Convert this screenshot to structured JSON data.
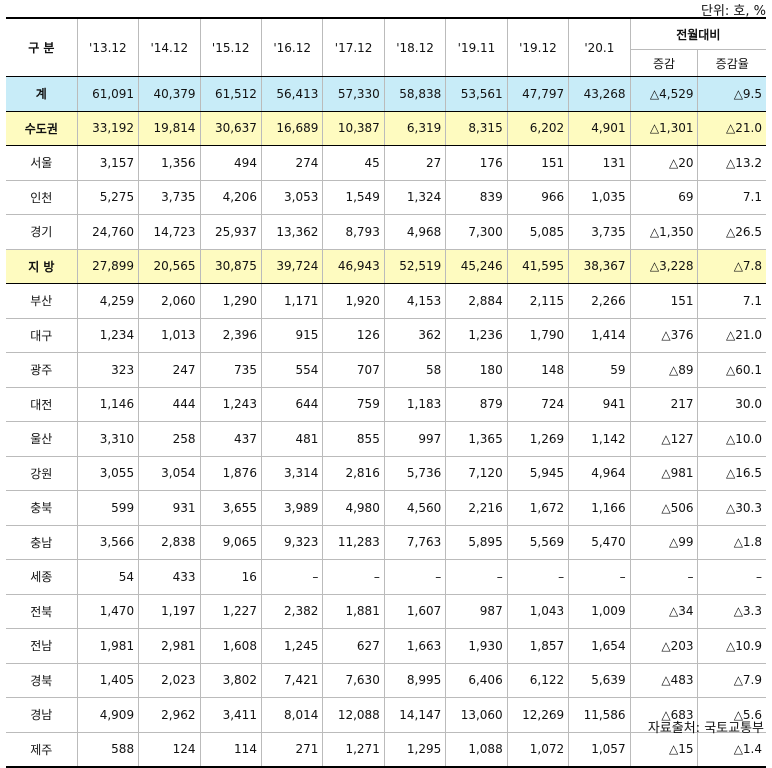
{
  "unit_label": "단위: 호, %",
  "source_label": "자료출처: 국토교통부",
  "header": {
    "category": "구 분",
    "years": [
      "'13.12",
      "'14.12",
      "'15.12",
      "'16.12",
      "'17.12",
      "'18.12",
      "'19.11",
      "'19.12",
      "'20.1"
    ],
    "mom_group": "전월대비",
    "mom_change": "증감",
    "mom_rate": "증감율"
  },
  "rows": [
    {
      "name": "계",
      "type": "total",
      "values": [
        "61,091",
        "40,379",
        "61,512",
        "56,413",
        "57,330",
        "58,838",
        "53,561",
        "47,797",
        "43,268",
        "△4,529",
        "△9.5"
      ]
    },
    {
      "name": "수도권",
      "type": "sub",
      "values": [
        "33,192",
        "19,814",
        "30,637",
        "16,689",
        "10,387",
        "6,319",
        "8,315",
        "6,202",
        "4,901",
        "△1,301",
        "△21.0"
      ]
    },
    {
      "name": "서울",
      "type": "row",
      "values": [
        "3,157",
        "1,356",
        "494",
        "274",
        "45",
        "27",
        "176",
        "151",
        "131",
        "△20",
        "△13.2"
      ]
    },
    {
      "name": "인천",
      "type": "row",
      "values": [
        "5,275",
        "3,735",
        "4,206",
        "3,053",
        "1,549",
        "1,324",
        "839",
        "966",
        "1,035",
        "69",
        "7.1"
      ]
    },
    {
      "name": "경기",
      "type": "row",
      "values": [
        "24,760",
        "14,723",
        "25,937",
        "13,362",
        "8,793",
        "4,968",
        "7,300",
        "5,085",
        "3,735",
        "△1,350",
        "△26.5"
      ]
    },
    {
      "name": "지 방",
      "type": "sub",
      "values": [
        "27,899",
        "20,565",
        "30,875",
        "39,724",
        "46,943",
        "52,519",
        "45,246",
        "41,595",
        "38,367",
        "△3,228",
        "△7.8"
      ]
    },
    {
      "name": "부산",
      "type": "row",
      "values": [
        "4,259",
        "2,060",
        "1,290",
        "1,171",
        "1,920",
        "4,153",
        "2,884",
        "2,115",
        "2,266",
        "151",
        "7.1"
      ]
    },
    {
      "name": "대구",
      "type": "row",
      "values": [
        "1,234",
        "1,013",
        "2,396",
        "915",
        "126",
        "362",
        "1,236",
        "1,790",
        "1,414",
        "△376",
        "△21.0"
      ]
    },
    {
      "name": "광주",
      "type": "row",
      "values": [
        "323",
        "247",
        "735",
        "554",
        "707",
        "58",
        "180",
        "148",
        "59",
        "△89",
        "△60.1"
      ]
    },
    {
      "name": "대전",
      "type": "row",
      "values": [
        "1,146",
        "444",
        "1,243",
        "644",
        "759",
        "1,183",
        "879",
        "724",
        "941",
        "217",
        "30.0"
      ]
    },
    {
      "name": "울산",
      "type": "row",
      "values": [
        "3,310",
        "258",
        "437",
        "481",
        "855",
        "997",
        "1,365",
        "1,269",
        "1,142",
        "△127",
        "△10.0"
      ]
    },
    {
      "name": "강원",
      "type": "row",
      "values": [
        "3,055",
        "3,054",
        "1,876",
        "3,314",
        "2,816",
        "5,736",
        "7,120",
        "5,945",
        "4,964",
        "△981",
        "△16.5"
      ]
    },
    {
      "name": "충북",
      "type": "row",
      "values": [
        "599",
        "931",
        "3,655",
        "3,989",
        "4,980",
        "4,560",
        "2,216",
        "1,672",
        "1,166",
        "△506",
        "△30.3"
      ]
    },
    {
      "name": "충남",
      "type": "row",
      "values": [
        "3,566",
        "2,838",
        "9,065",
        "9,323",
        "11,283",
        "7,763",
        "5,895",
        "5,569",
        "5,470",
        "△99",
        "△1.8"
      ]
    },
    {
      "name": "세종",
      "type": "row",
      "values": [
        "54",
        "433",
        "16",
        "–",
        "–",
        "–",
        "–",
        "–",
        "–",
        "–",
        "–"
      ]
    },
    {
      "name": "전북",
      "type": "row",
      "values": [
        "1,470",
        "1,197",
        "1,227",
        "2,382",
        "1,881",
        "1,607",
        "987",
        "1,043",
        "1,009",
        "△34",
        "△3.3"
      ]
    },
    {
      "name": "전남",
      "type": "row",
      "values": [
        "1,981",
        "2,981",
        "1,608",
        "1,245",
        "627",
        "1,663",
        "1,930",
        "1,857",
        "1,654",
        "△203",
        "△10.9"
      ]
    },
    {
      "name": "경북",
      "type": "row",
      "values": [
        "1,405",
        "2,023",
        "3,802",
        "7,421",
        "7,630",
        "8,995",
        "6,406",
        "6,122",
        "5,639",
        "△483",
        "△7.9"
      ]
    },
    {
      "name": "경남",
      "type": "row",
      "values": [
        "4,909",
        "2,962",
        "3,411",
        "8,014",
        "12,088",
        "14,147",
        "13,060",
        "12,269",
        "11,586",
        "△683",
        "△5.6"
      ]
    },
    {
      "name": "제주",
      "type": "row",
      "values": [
        "588",
        "124",
        "114",
        "271",
        "1,271",
        "1,295",
        "1,088",
        "1,072",
        "1,057",
        "△15",
        "△1.4"
      ]
    }
  ]
}
